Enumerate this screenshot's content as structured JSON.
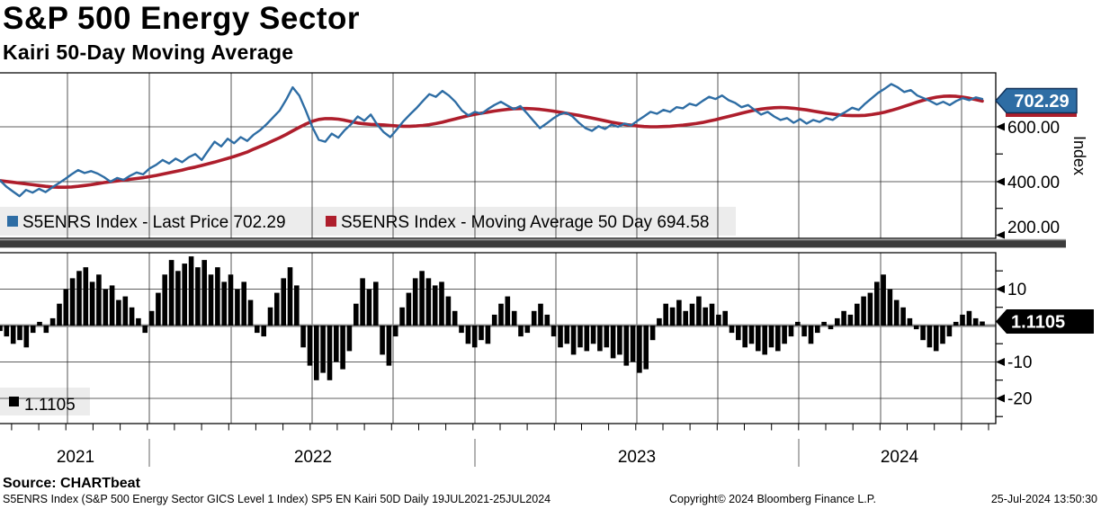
{
  "header": {
    "title": "S&P 500 Energy Sector",
    "subtitle": "Kairi 50-Day Moving Average"
  },
  "top_panel": {
    "axis_title": "Index",
    "y_tick_labels": [
      "600.00",
      "400.00",
      "200.00"
    ],
    "last_price_tag": "702.29",
    "legend": [
      {
        "label": "S5ENRS Index - Last Price 702.29",
        "color": "#2e6da4"
      },
      {
        "label": "S5ENRS Index - Moving Average 50 Day 694.58",
        "color": "#ae1e2c"
      }
    ]
  },
  "bottom_panel": {
    "y_tick_labels": [
      "10",
      "-10",
      "-20"
    ],
    "value_tag": "1.1105",
    "legend_value": "1.1105",
    "bar_color": "#000000"
  },
  "x_axis": {
    "year_labels": [
      "2021",
      "2022",
      "2023",
      "2024"
    ]
  },
  "footer": {
    "source": "Source: CHARTbeat",
    "description": "S5ENRS Index (S&P 500 Energy Sector GICS Level 1 Index) SP5 EN Kairi 50D  Daily 19JUL2021-25JUL2024",
    "copyright": "Copyright© 2024 Bloomberg Finance L.P.",
    "datetime": "25-Jul-2024 13:50:30"
  },
  "chart_data": [
    {
      "type": "line",
      "title": "S&P 500 Energy Sector",
      "x_range": [
        "19JUL2021",
        "25JUL2024"
      ],
      "x_tick_years": [
        2021,
        2022,
        2023,
        2024
      ],
      "ylabel": "Index",
      "y_ticks": [
        600,
        400,
        200
      ],
      "ylim": [
        190,
        795
      ],
      "grid": true,
      "legend_position": "bottom-left",
      "series": [
        {
          "name": "S5ENRS Index - Last Price",
          "last": 702.29,
          "color": "#2e6da4",
          "values": [
            403,
            380,
            362,
            345,
            368,
            358,
            372,
            360,
            377,
            392,
            408,
            425,
            441,
            430,
            437,
            428,
            415,
            398,
            412,
            405,
            420,
            432,
            425,
            447,
            460,
            478,
            465,
            483,
            470,
            488,
            500,
            478,
            512,
            545,
            528,
            556,
            540,
            562,
            548,
            571,
            588,
            610,
            635,
            660,
            700,
            745,
            715,
            660,
            600,
            552,
            545,
            575,
            560,
            588,
            610,
            638,
            622,
            645,
            608,
            580,
            562,
            590,
            620,
            645,
            668,
            695,
            720,
            710,
            732,
            715,
            692,
            660,
            642,
            655,
            648,
            665,
            680,
            692,
            678,
            665,
            676,
            650,
            622,
            595,
            612,
            630,
            645,
            652,
            638,
            615,
            595,
            585,
            602,
            592,
            608,
            600,
            612,
            605,
            622,
            638,
            655,
            648,
            662,
            655,
            672,
            668,
            685,
            678,
            695,
            710,
            702,
            715,
            698,
            688,
            672,
            680,
            662,
            645,
            655,
            638,
            625,
            632,
            615,
            628,
            612,
            625,
            618,
            632,
            625,
            642,
            655,
            670,
            662,
            685,
            705,
            725,
            740,
            757,
            745,
            728,
            735,
            715,
            705,
            695,
            682,
            692,
            680,
            695,
            705,
            698,
            708,
            702.29
          ]
        },
        {
          "name": "S5ENRS Index - Moving Average 50 Day",
          "last": 694.58,
          "color": "#ae1e2c",
          "values": [
            402,
            399,
            396,
            393,
            390,
            387,
            384,
            381,
            379,
            378,
            378,
            379,
            381,
            384,
            387,
            391,
            395,
            398,
            401,
            404,
            407,
            410,
            413,
            417,
            421,
            426,
            431,
            436,
            441,
            447,
            452,
            458,
            464,
            470,
            477,
            484,
            491,
            499,
            507,
            518,
            528,
            538,
            549,
            560,
            572,
            585,
            598,
            610,
            620,
            627,
            630,
            630,
            628,
            624,
            619,
            614,
            611,
            609,
            608,
            607,
            605,
            603,
            602,
            602,
            603,
            605,
            608,
            612,
            617,
            623,
            629,
            635,
            641,
            646,
            650,
            654,
            658,
            661,
            664,
            666,
            667,
            667,
            666,
            664,
            661,
            658,
            654,
            650,
            646,
            642,
            637,
            632,
            627,
            622,
            617,
            613,
            609,
            606,
            603,
            601,
            600,
            600,
            601,
            602,
            604,
            606,
            609,
            612,
            616,
            621,
            626,
            632,
            638,
            644,
            650,
            656,
            661,
            665,
            668,
            670,
            671,
            670,
            668,
            665,
            662,
            658,
            654,
            650,
            647,
            644,
            642,
            641,
            641,
            642,
            645,
            649,
            654,
            660,
            667,
            675,
            683,
            691,
            698,
            704,
            709,
            712,
            713,
            712,
            709,
            705,
            700,
            694.58
          ]
        }
      ]
    },
    {
      "type": "bar",
      "title": "Kairi 50-Day Moving Average",
      "name": "Kairi 50D",
      "last": 1.1105,
      "color": "#000000",
      "y_ticks": [
        10,
        -10,
        -20
      ],
      "ylim": [
        -26.5,
        20
      ],
      "grid": true,
      "values": [
        -1.5,
        -3,
        -5,
        -4,
        -6,
        -2,
        1,
        -2,
        2,
        6,
        10,
        13,
        15,
        16,
        12,
        14,
        10,
        11,
        7,
        8,
        5,
        2,
        -2,
        4,
        9,
        14,
        18,
        15,
        17,
        19,
        16,
        18,
        14,
        16,
        12,
        14,
        10,
        12,
        7,
        -2,
        -3,
        5,
        9,
        13,
        16,
        11,
        -6,
        -11,
        -15,
        -13,
        -15,
        -10,
        -12,
        -7,
        6,
        13,
        10,
        12,
        -8,
        -11,
        -3,
        5,
        9,
        13,
        15,
        13,
        11,
        12,
        8,
        4,
        -2,
        -5,
        -6,
        -4,
        -5,
        3,
        6,
        8,
        4,
        -3,
        -2,
        4,
        6,
        3,
        -3,
        -6,
        -5,
        -8,
        -6,
        -7,
        -5,
        -7,
        -6,
        -9,
        -8,
        -11,
        -10,
        -13,
        -12,
        -4,
        2,
        6,
        5,
        7,
        4,
        6,
        8,
        5,
        6,
        3,
        4,
        -2,
        -4,
        -6,
        -5,
        -7,
        -8,
        -6,
        -7,
        -5,
        -3,
        1,
        -3,
        -5,
        -2,
        1,
        -1,
        2,
        4,
        3,
        6,
        8,
        9,
        12,
        14,
        10,
        7,
        5,
        2,
        -1,
        -4,
        -6,
        -7,
        -5,
        -3,
        1,
        3,
        4,
        2,
        1.1105
      ]
    }
  ]
}
